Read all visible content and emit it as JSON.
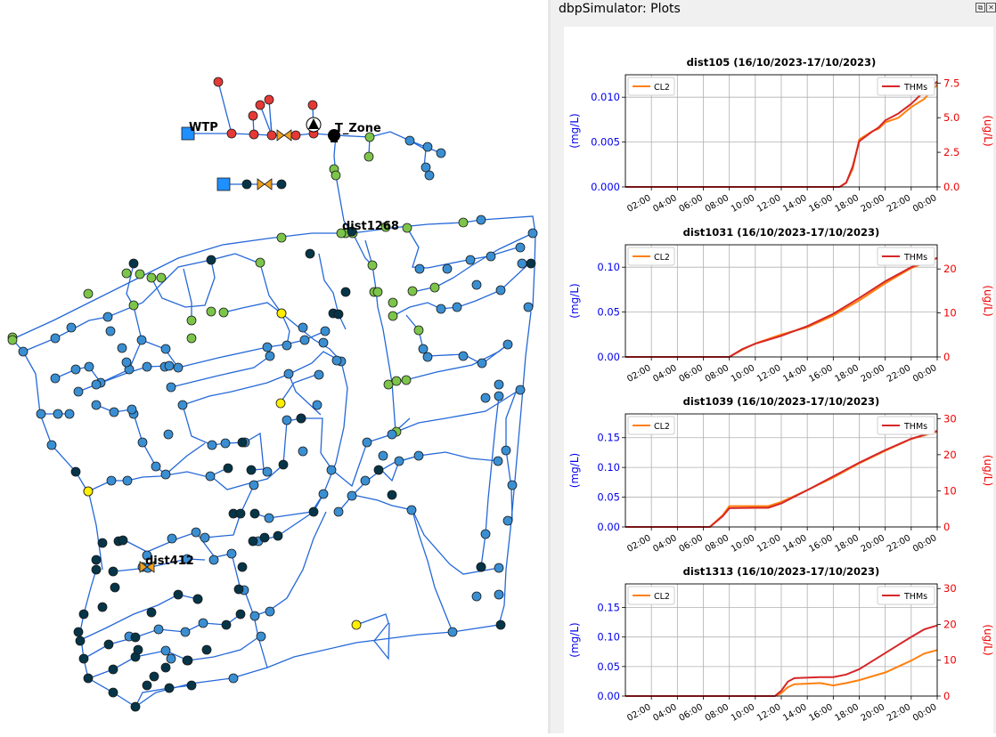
{
  "panel": {
    "title": "dbpSimulator: Plots",
    "float_icon": "float-icon",
    "close_icon": "close-icon"
  },
  "map": {
    "labels": {
      "wtp": "WTP",
      "tzone": "T_Zone",
      "dist1268": "dist1268",
      "dist412": "dist412"
    },
    "node_colors": {
      "red": "#e53935",
      "green": "#7cc54a",
      "blue": "#3a8fd2",
      "dark": "#063548",
      "yellow": "#ffef00",
      "source": "#1e90ff",
      "valve": "#f0a020",
      "pipe": "#2468d8"
    }
  },
  "chart_data": [
    {
      "type": "line",
      "title": "dist105 (16/10/2023-17/10/2023)",
      "x_ticks": [
        "02:00",
        "04:00",
        "06:00",
        "08:00",
        "10:00",
        "12:00",
        "14:00",
        "16:00",
        "18:00",
        "20:00",
        "22:00",
        "00:00"
      ],
      "y_left_label": "(mg/L)",
      "y_right_label": "(ug/L)",
      "y_left_ticks": [
        "0.000",
        "0.005",
        "0.010"
      ],
      "y_right_ticks": [
        "0.0",
        "2.5",
        "5.0",
        "7.5"
      ],
      "ylim_left": [
        0,
        0.0125
      ],
      "ylim_right": [
        0,
        8.1
      ],
      "legend_left": "CL2",
      "legend_right": "THMs",
      "grid": true,
      "series": [
        {
          "name": "CL2",
          "axis": "left",
          "color": "#ff7f0e",
          "x": [
            0,
            16.5,
            17.0,
            17.5,
            18,
            19,
            19.5,
            20,
            21,
            22,
            23,
            24
          ],
          "y": [
            0,
            0,
            0.0005,
            0.002,
            0.0053,
            0.0062,
            0.0065,
            0.0072,
            0.0077,
            0.0089,
            0.0098,
            0.0114
          ]
        },
        {
          "name": "THMs",
          "axis": "right",
          "color": "#d62728",
          "x": [
            0,
            16.5,
            17.0,
            17.5,
            18,
            19,
            19.5,
            20,
            21,
            22,
            23,
            24
          ],
          "y": [
            0,
            0,
            0.3,
            1.5,
            3.3,
            4.0,
            4.3,
            4.8,
            5.3,
            6.0,
            6.9,
            7.6
          ]
        }
      ]
    },
    {
      "type": "line",
      "title": "dist1031 (16/10/2023-17/10/2023)",
      "x_ticks": [
        "02:00",
        "04:00",
        "06:00",
        "08:00",
        "10:00",
        "12:00",
        "14:00",
        "16:00",
        "18:00",
        "20:00",
        "22:00",
        "00:00"
      ],
      "y_left_label": "(mg/L)",
      "y_right_label": "(ug/L)",
      "y_left_ticks": [
        "0.00",
        "0.05",
        "0.10"
      ],
      "y_right_ticks": [
        "0",
        "10",
        "20"
      ],
      "ylim_left": [
        0,
        0.125
      ],
      "ylim_right": [
        0,
        25.5
      ],
      "legend_left": "CL2",
      "legend_right": "THMs",
      "grid": true,
      "series": [
        {
          "name": "CL2",
          "axis": "left",
          "color": "#ff7f0e",
          "x": [
            0,
            8,
            9,
            10,
            12,
            14,
            16,
            18,
            20,
            22,
            24
          ],
          "y": [
            0,
            0,
            0.008,
            0.015,
            0.025,
            0.033,
            0.046,
            0.063,
            0.082,
            0.099,
            0.11
          ]
        },
        {
          "name": "THMs",
          "axis": "right",
          "color": "#d62728",
          "x": [
            0,
            8,
            9,
            10,
            12,
            14,
            16,
            18,
            20,
            22,
            24
          ],
          "y": [
            0,
            0,
            1.8,
            3.0,
            4.8,
            7.0,
            9.8,
            13.4,
            17.2,
            20.4,
            22.5
          ]
        }
      ]
    },
    {
      "type": "line",
      "title": "dist1039 (16/10/2023-17/10/2023)",
      "x_ticks": [
        "02:00",
        "04:00",
        "06:00",
        "08:00",
        "10:00",
        "12:00",
        "14:00",
        "16:00",
        "18:00",
        "20:00",
        "22:00",
        "00:00"
      ],
      "y_left_label": "(mg/L)",
      "y_right_label": "(ug/L)",
      "y_left_ticks": [
        "0.00",
        "0.05",
        "0.10",
        "0.15"
      ],
      "y_right_ticks": [
        "0",
        "10",
        "20",
        "30"
      ],
      "ylim_left": [
        0,
        0.19
      ],
      "ylim_right": [
        0,
        31.3
      ],
      "legend_left": "CL2",
      "legend_right": "THMs",
      "grid": true,
      "series": [
        {
          "name": "CL2",
          "axis": "left",
          "color": "#ff7f0e",
          "x": [
            0,
            6.5,
            7.5,
            8,
            10,
            11,
            12,
            14,
            16,
            18,
            20,
            22,
            24
          ],
          "y": [
            0,
            0,
            0.02,
            0.035,
            0.035,
            0.035,
            0.042,
            0.062,
            0.083,
            0.107,
            0.128,
            0.148,
            0.16
          ]
        },
        {
          "name": "THMs",
          "axis": "right",
          "color": "#d62728",
          "x": [
            0,
            6.5,
            7.5,
            8,
            10,
            11,
            12,
            14,
            16,
            18,
            20,
            22,
            24
          ],
          "y": [
            0,
            0,
            3.0,
            5.2,
            5.3,
            5.3,
            6.5,
            10.2,
            14.0,
            17.8,
            21.3,
            24.4,
            26.6
          ]
        }
      ]
    },
    {
      "type": "line",
      "title": "dist1313 (16/10/2023-17/10/2023)",
      "x_ticks": [
        "02:00",
        "04:00",
        "06:00",
        "08:00",
        "10:00",
        "12:00",
        "14:00",
        "16:00",
        "18:00",
        "20:00",
        "22:00",
        "00:00"
      ],
      "y_left_label": "(mg/L)",
      "y_right_label": "(ug/L)",
      "y_left_ticks": [
        "0.00",
        "0.05",
        "0.10",
        "0.15"
      ],
      "y_right_ticks": [
        "0",
        "10",
        "20",
        "30"
      ],
      "ylim_left": [
        0,
        0.19
      ],
      "ylim_right": [
        0,
        31.3
      ],
      "legend_left": "CL2",
      "legend_right": "THMs",
      "grid": true,
      "series": [
        {
          "name": "CL2",
          "axis": "left",
          "color": "#ff7f0e",
          "x": [
            0,
            11.5,
            12,
            12.5,
            13,
            15,
            16,
            17,
            18,
            20,
            22,
            23,
            24
          ],
          "y": [
            0,
            0,
            0.005,
            0.015,
            0.02,
            0.022,
            0.018,
            0.022,
            0.027,
            0.04,
            0.06,
            0.072,
            0.078
          ]
        },
        {
          "name": "THMs",
          "axis": "right",
          "color": "#d62728",
          "x": [
            0,
            11.5,
            12,
            12.5,
            13,
            15,
            16,
            17,
            18,
            20,
            22,
            23,
            24
          ],
          "y": [
            0,
            0,
            1.5,
            4.0,
            5.0,
            5.3,
            5.3,
            6.0,
            7.5,
            12.0,
            16.5,
            18.6,
            19.7
          ]
        }
      ]
    }
  ]
}
